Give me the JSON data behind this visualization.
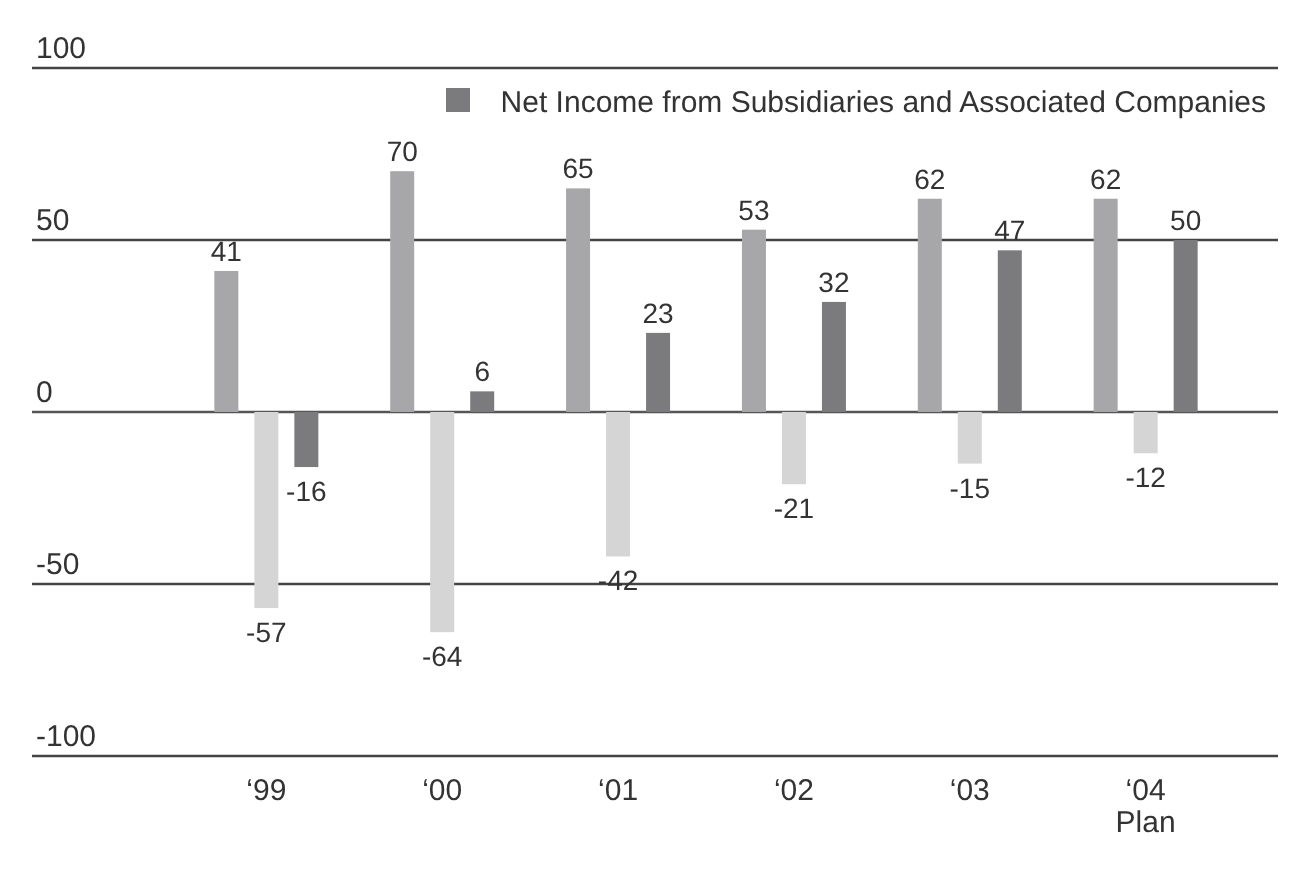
{
  "chart_data": {
    "type": "bar",
    "categories": [
      "‘99",
      "‘00",
      "‘01",
      "‘02",
      "‘03",
      "‘04\nPlan"
    ],
    "series": [
      {
        "color": "#a7a7a9",
        "values": [
          41,
          70,
          65,
          53,
          62,
          62
        ]
      },
      {
        "color": "#d5d5d6",
        "values": [
          -57,
          -64,
          -42,
          -21,
          -15,
          -12
        ]
      },
      {
        "name": "Net Income from Subsidiaries and Associated Companies",
        "color": "#7b7b7e",
        "values": [
          -16,
          6,
          23,
          32,
          47,
          50
        ]
      }
    ],
    "ylim": [
      -100,
      100
    ],
    "yticks": [
      -100,
      -50,
      0,
      50,
      100
    ],
    "grid": "y",
    "legend": "top right",
    "data_labels": true
  }
}
